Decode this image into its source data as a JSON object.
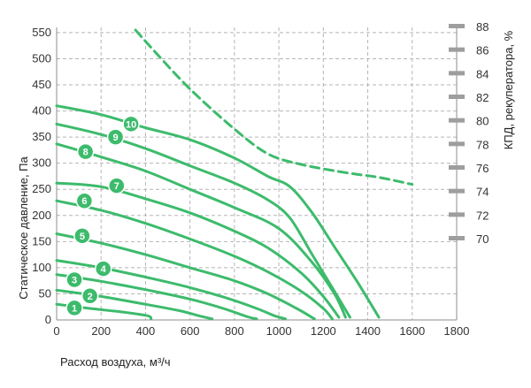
{
  "chart_data": {
    "type": "line",
    "title": "",
    "xlabel": "Расход воздуха, м³/ч",
    "ylabel": "Статическое давление, Па",
    "y2label": "КПД, рекуператора, %",
    "xlim": [
      0,
      1800
    ],
    "ylim": [
      0,
      560
    ],
    "y2lim": [
      70,
      88
    ],
    "x_ticks": [
      0,
      200,
      400,
      600,
      800,
      1000,
      1200,
      1400,
      1600,
      1800
    ],
    "y_ticks": [
      0,
      50,
      100,
      150,
      200,
      250,
      300,
      350,
      400,
      450,
      500,
      550
    ],
    "y2_ticks": [
      70,
      72,
      74,
      76,
      78,
      80,
      82,
      84,
      86,
      88
    ],
    "grid": true,
    "series_color": "#3dbb6c",
    "series": [
      {
        "label": "1",
        "badge": [
          80,
          23
        ],
        "points": [
          [
            0,
            30
          ],
          [
            150,
            22
          ],
          [
            300,
            15
          ],
          [
            410,
            8
          ],
          [
            425,
            2
          ]
        ]
      },
      {
        "label": "2",
        "badge": [
          150,
          46
        ],
        "points": [
          [
            0,
            57
          ],
          [
            200,
            45
          ],
          [
            400,
            30
          ],
          [
            550,
            18
          ],
          [
            640,
            8
          ],
          [
            700,
            2
          ]
        ]
      },
      {
        "label": "3",
        "badge": [
          80,
          77
        ],
        "points": [
          [
            0,
            87
          ],
          [
            200,
            74
          ],
          [
            400,
            58
          ],
          [
            600,
            40
          ],
          [
            750,
            22
          ],
          [
            860,
            6
          ],
          [
            900,
            2
          ]
        ]
      },
      {
        "label": "4",
        "badge": [
          210,
          98
        ],
        "points": [
          [
            0,
            114
          ],
          [
            200,
            100
          ],
          [
            400,
            82
          ],
          [
            600,
            62
          ],
          [
            780,
            40
          ],
          [
            900,
            22
          ],
          [
            980,
            8
          ],
          [
            1030,
            2
          ]
        ]
      },
      {
        "label": "5",
        "badge": [
          115,
          161
        ],
        "points": [
          [
            0,
            165
          ],
          [
            200,
            147
          ],
          [
            400,
            125
          ],
          [
            600,
            100
          ],
          [
            800,
            75
          ],
          [
            950,
            50
          ],
          [
            1080,
            22
          ],
          [
            1160,
            2
          ]
        ]
      },
      {
        "label": "6",
        "badge": [
          125,
          228
        ],
        "points": [
          [
            0,
            228
          ],
          [
            200,
            210
          ],
          [
            400,
            185
          ],
          [
            600,
            155
          ],
          [
            800,
            122
          ],
          [
            950,
            92
          ],
          [
            1100,
            55
          ],
          [
            1200,
            22
          ],
          [
            1240,
            2
          ]
        ]
      },
      {
        "label": "7",
        "badge": [
          270,
          257
        ],
        "points": [
          [
            0,
            262
          ],
          [
            200,
            255
          ],
          [
            400,
            232
          ],
          [
            600,
            205
          ],
          [
            800,
            170
          ],
          [
            950,
            138
          ],
          [
            1100,
            90
          ],
          [
            1200,
            45
          ],
          [
            1270,
            5
          ]
        ]
      },
      {
        "label": "8",
        "badge": [
          130,
          322
        ],
        "points": [
          [
            0,
            337
          ],
          [
            200,
            312
          ],
          [
            400,
            285
          ],
          [
            600,
            250
          ],
          [
            800,
            215
          ],
          [
            1000,
            175
          ],
          [
            1150,
            110
          ],
          [
            1250,
            50
          ],
          [
            1300,
            5
          ]
        ]
      },
      {
        "label": "9",
        "badge": [
          265,
          350
        ],
        "points": [
          [
            0,
            375
          ],
          [
            200,
            355
          ],
          [
            400,
            328
          ],
          [
            600,
            295
          ],
          [
            800,
            262
          ],
          [
            950,
            230
          ],
          [
            1050,
            195
          ],
          [
            1150,
            125
          ],
          [
            1250,
            55
          ],
          [
            1320,
            5
          ]
        ]
      },
      {
        "label": "10",
        "badge": [
          335,
          375
        ],
        "points": [
          [
            0,
            410
          ],
          [
            200,
            393
          ],
          [
            400,
            368
          ],
          [
            600,
            345
          ],
          [
            800,
            310
          ],
          [
            950,
            275
          ],
          [
            1050,
            255
          ],
          [
            1150,
            205
          ],
          [
            1250,
            140
          ],
          [
            1350,
            75
          ],
          [
            1450,
            5
          ]
        ]
      }
    ],
    "efficiency_series": {
      "style": "dashed",
      "axis": "right",
      "points": [
        [
          355,
          87.7
        ],
        [
          450,
          85.7
        ],
        [
          600,
          82.7
        ],
        [
          800,
          79.3
        ],
        [
          950,
          77.2
        ],
        [
          1100,
          76.3
        ],
        [
          1300,
          75.6
        ],
        [
          1450,
          75.2
        ],
        [
          1600,
          74.6
        ]
      ]
    }
  }
}
